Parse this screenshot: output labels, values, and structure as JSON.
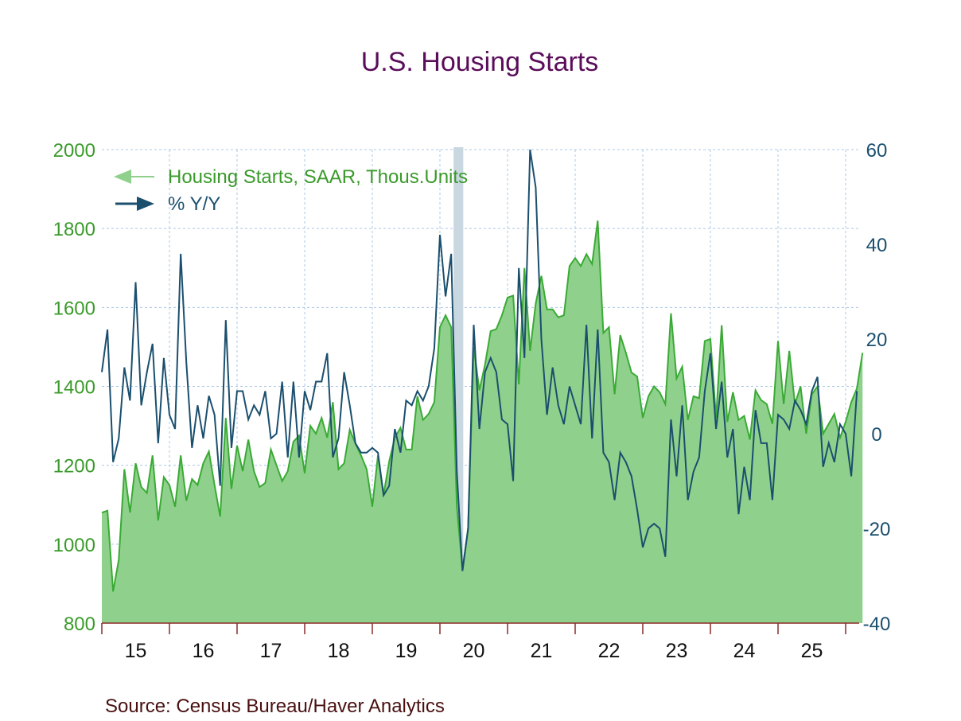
{
  "chart_data": {
    "type": "line",
    "title": "U.S. Housing Starts",
    "source": "Source:  Census Bureau/Haver Analytics",
    "x_tick_labels": [
      "15",
      "16",
      "17",
      "18",
      "19",
      "20",
      "21",
      "22",
      "23",
      "24",
      "25"
    ],
    "left_axis": {
      "range": [
        800,
        2000
      ],
      "ticks": [
        "800",
        "1000",
        "1200",
        "1400",
        "1600",
        "1800",
        "2000"
      ]
    },
    "right_axis": {
      "range": [
        -40,
        60
      ],
      "ticks": [
        "-40",
        "-20",
        "0",
        "20",
        "40",
        "60"
      ]
    },
    "recession_shading": {
      "start_month_index": 62,
      "end_month_index": 64
    },
    "series": [
      {
        "name": "Housing Starts, SAAR, Thous.Units",
        "axis": "left",
        "style": "area",
        "color": "#3aaa35",
        "fill": "#8fd18c",
        "values": [
          1080,
          1085,
          880,
          960,
          1190,
          1080,
          1205,
          1145,
          1130,
          1225,
          1060,
          1170,
          1150,
          1095,
          1225,
          1110,
          1165,
          1150,
          1205,
          1235,
          1150,
          1070,
          1320,
          1140,
          1250,
          1185,
          1265,
          1185,
          1145,
          1155,
          1240,
          1200,
          1160,
          1185,
          1260,
          1275,
          1180,
          1300,
          1280,
          1320,
          1270,
          1360,
          1190,
          1205,
          1290,
          1255,
          1225,
          1190,
          1095,
          1225,
          1125,
          1210,
          1270,
          1295,
          1240,
          1240,
          1375,
          1315,
          1330,
          1360,
          1550,
          1580,
          1550,
          1095,
          935,
          1040,
          1500,
          1390,
          1455,
          1540,
          1545,
          1580,
          1625,
          1630,
          1405,
          1700,
          1490,
          1610,
          1680,
          1595,
          1595,
          1575,
          1580,
          1705,
          1725,
          1705,
          1735,
          1710,
          1820,
          1535,
          1550,
          1380,
          1530,
          1485,
          1435,
          1425,
          1320,
          1375,
          1400,
          1385,
          1355,
          1585,
          1420,
          1450,
          1315,
          1375,
          1370,
          1515,
          1520,
          1320,
          1555,
          1310,
          1385,
          1315,
          1325,
          1265,
          1390,
          1365,
          1355,
          1305,
          1515,
          1355,
          1490,
          1355,
          1400,
          1280,
          1380,
          1400,
          1280,
          1305,
          1330,
          1270,
          1310,
          1360,
          1395,
          1485
        ]
      },
      {
        "name": "% Y/Y",
        "axis": "right",
        "style": "line",
        "color": "#1a4f6e",
        "values": [
          13,
          22,
          -6,
          -1,
          14,
          7,
          32,
          6,
          13,
          19,
          -2,
          16,
          4,
          1,
          38,
          15,
          -3,
          6,
          -1,
          8,
          4,
          -11,
          24,
          -3,
          9,
          9,
          3,
          6,
          4,
          9,
          -1,
          0,
          11,
          -5,
          11,
          -5,
          9,
          5,
          11,
          11,
          17,
          -5,
          -1,
          13,
          6,
          -2,
          -4,
          -4,
          -3,
          -4,
          -13,
          -11,
          1,
          -4,
          7,
          6,
          9,
          7,
          10,
          18,
          42,
          29,
          38,
          -8,
          -29,
          -20,
          23,
          1,
          13,
          16,
          13,
          3,
          2,
          -10,
          35,
          16,
          60,
          52,
          20,
          4,
          14,
          6,
          2,
          10,
          6,
          2,
          23,
          -1,
          22,
          -4,
          -6,
          -14,
          -4,
          -6,
          -9,
          -16,
          -24,
          -20,
          -19,
          -20,
          -26,
          3,
          -9,
          6,
          -14,
          -8,
          -5,
          9,
          17,
          1,
          11,
          -5,
          1,
          -17,
          -7,
          -14,
          5,
          -2,
          -2,
          -14,
          4,
          3,
          1,
          7,
          5,
          2,
          9,
          12,
          -7,
          -2,
          -6,
          2,
          0,
          -9,
          9
        ]
      }
    ]
  },
  "legend": {
    "item1": "Housing Starts, SAAR, Thous.Units",
    "item2": "% Y/Y"
  },
  "colors": {
    "area_fill": "#8fd18c",
    "area_line": "#3aaa35",
    "line": "#1a4f6e",
    "recession": "#c8d7e0",
    "grid": "#a9c8e6"
  }
}
